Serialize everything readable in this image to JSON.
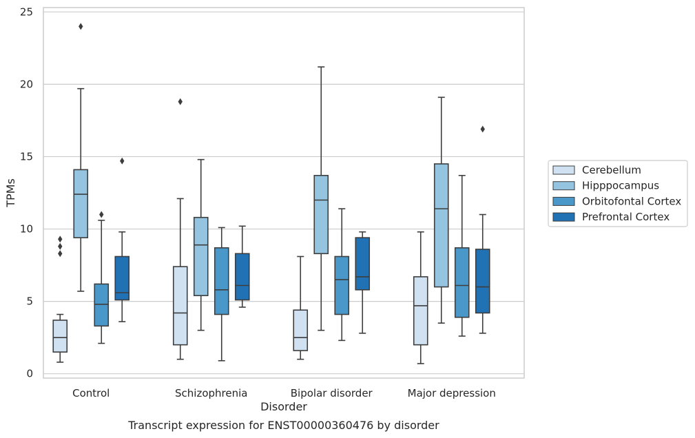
{
  "chart_data": {
    "type": "box",
    "title": "",
    "caption": "Transcript expression for ENST00000360476 by disorder",
    "xlabel": "Disorder",
    "ylabel": "TPMs",
    "ylim": [
      -0.3,
      25.3
    ],
    "yticks": [
      0,
      5,
      10,
      15,
      20,
      25
    ],
    "grid": "horizontal",
    "legend_position": "right",
    "categories": [
      "Control",
      "Schizophrenia",
      "Bipolar disorder",
      "Major depression"
    ],
    "series": [
      {
        "name": "Cerebellum",
        "color": "#d0e1f2",
        "boxes": [
          {
            "whislo": 0.8,
            "q1": 1.5,
            "med": 2.5,
            "q3": 3.7,
            "whishi": 4.1,
            "fliers": []
          },
          {
            "whislo": 1.0,
            "q1": 2.0,
            "med": 4.2,
            "q3": 7.4,
            "whishi": 12.1,
            "fliers": [
              18.8
            ]
          },
          {
            "whislo": 1.0,
            "q1": 1.6,
            "med": 2.5,
            "q3": 4.4,
            "whishi": 8.1,
            "fliers": []
          },
          {
            "whislo": 0.7,
            "q1": 2.0,
            "med": 4.7,
            "q3": 6.7,
            "whishi": 9.8,
            "fliers": []
          }
        ]
      },
      {
        "name": "Hipppocampus",
        "color": "#94c4df",
        "boxes": [
          {
            "whislo": 5.7,
            "q1": 9.4,
            "med": 12.4,
            "q3": 14.1,
            "whishi": 19.7,
            "fliers": [
              24.0
            ]
          },
          {
            "whislo": 3.0,
            "q1": 5.4,
            "med": 8.9,
            "q3": 10.8,
            "whishi": 14.8,
            "fliers": []
          },
          {
            "whislo": 3.0,
            "q1": 8.3,
            "med": 12.0,
            "q3": 13.7,
            "whishi": 21.2,
            "fliers": []
          },
          {
            "whislo": 3.5,
            "q1": 6.0,
            "med": 11.4,
            "q3": 14.5,
            "whishi": 19.1,
            "fliers": []
          }
        ]
      },
      {
        "name": "Orbitofontal Cortex",
        "color": "#4a98c9",
        "boxes": [
          {
            "whislo": 2.1,
            "q1": 3.3,
            "med": 4.8,
            "q3": 6.2,
            "whishi": 10.6,
            "fliers": [
              11.0
            ]
          },
          {
            "whislo": 0.9,
            "q1": 4.1,
            "med": 5.8,
            "q3": 8.7,
            "whishi": 10.1,
            "fliers": []
          },
          {
            "whislo": 2.3,
            "q1": 4.1,
            "med": 6.5,
            "q3": 8.1,
            "whishi": 11.4,
            "fliers": []
          },
          {
            "whislo": 2.6,
            "q1": 3.9,
            "med": 6.1,
            "q3": 8.7,
            "whishi": 13.7,
            "fliers": []
          }
        ]
      },
      {
        "name": "Prefrontal Cortex",
        "color": "#2171b5",
        "boxes": [
          {
            "whislo": 3.6,
            "q1": 5.1,
            "med": 5.6,
            "q3": 8.1,
            "whishi": 9.8,
            "fliers": [
              14.7
            ]
          },
          {
            "whislo": 4.6,
            "q1": 5.1,
            "med": 6.1,
            "q3": 8.3,
            "whishi": 10.2,
            "fliers": []
          },
          {
            "whislo": 2.8,
            "q1": 5.8,
            "med": 6.7,
            "q3": 9.4,
            "whishi": 9.8,
            "fliers": []
          },
          {
            "whislo": 2.8,
            "q1": 4.2,
            "med": 6.0,
            "q3": 8.6,
            "whishi": 11.0,
            "fliers": [
              16.9
            ]
          }
        ]
      }
    ],
    "extra_fliers": [
      {
        "category": 0,
        "series": 0,
        "values": [
          8.3,
          8.8,
          9.3
        ]
      }
    ]
  }
}
